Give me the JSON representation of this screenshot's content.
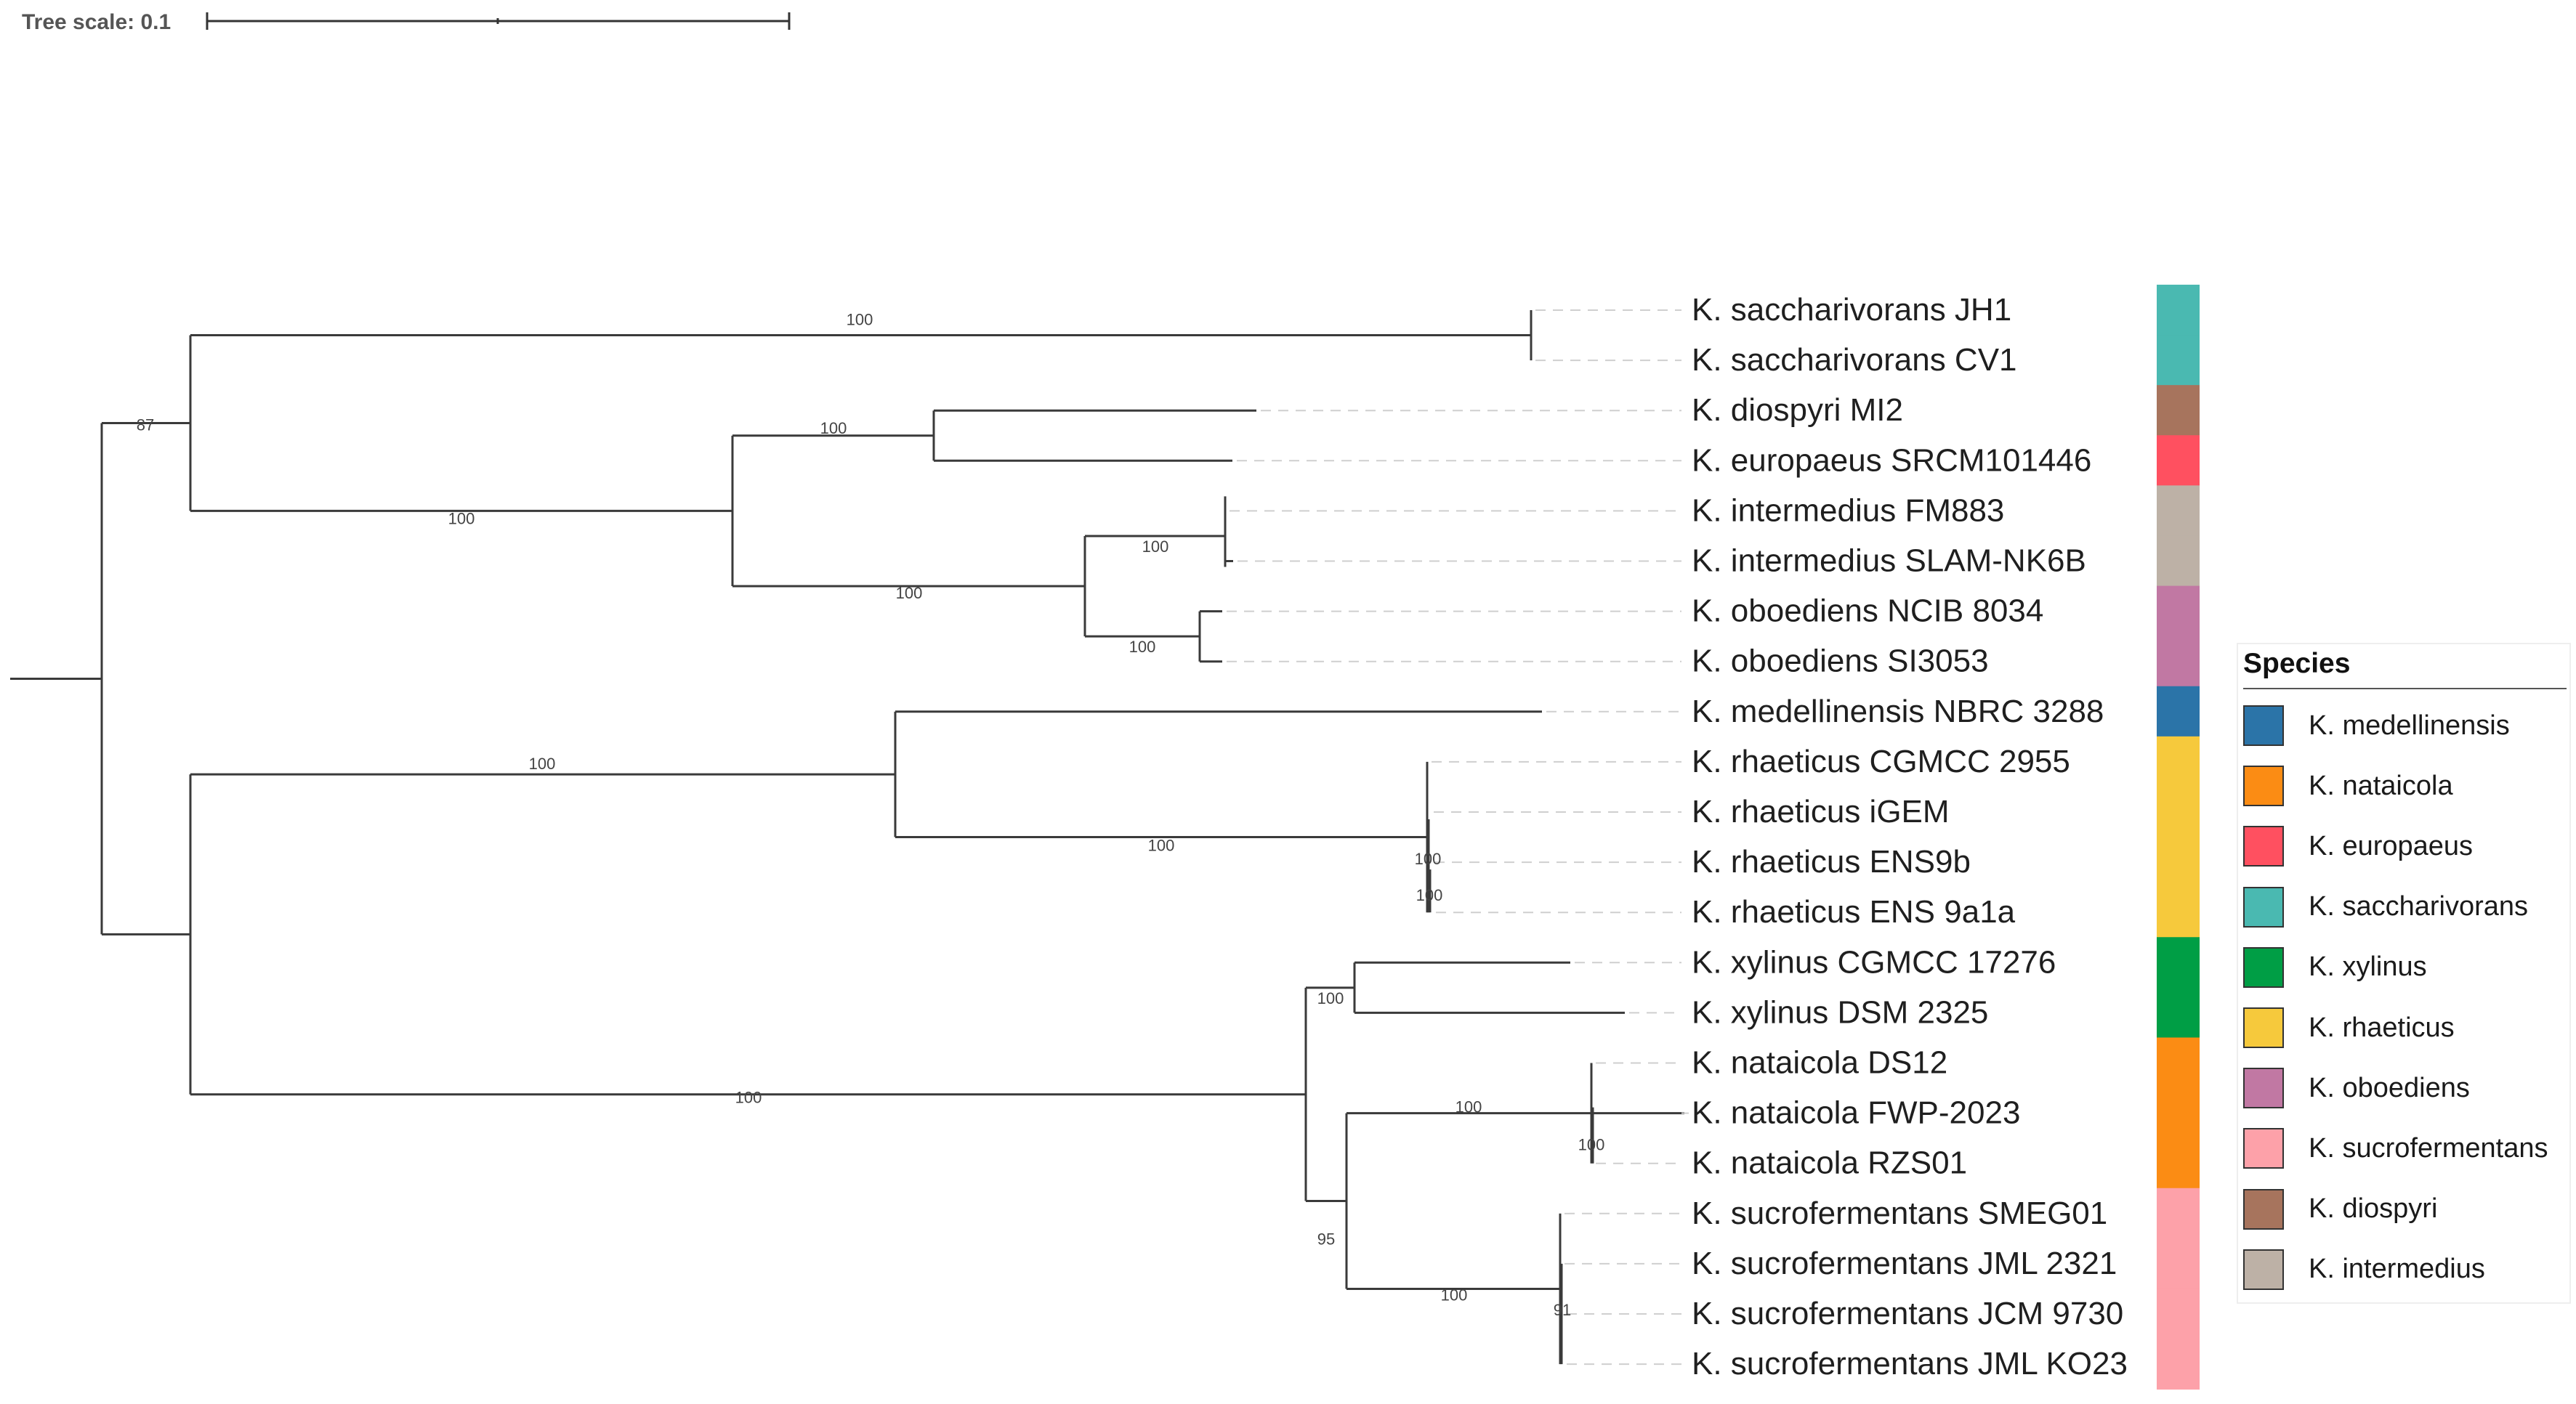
{
  "tree_scale": {
    "label": "Tree scale: 0.1"
  },
  "species_colors": {
    "medellinensis": "#2b74a8",
    "nataicola": "#fb8c14",
    "europaeus": "#ff5060",
    "saccharivorans": "#4ab9b1",
    "xylinus": "#009e45",
    "rhaeticus": "#f6c93c",
    "oboediens": "#c178a3",
    "sucrofermentans": "#fda1a9",
    "diospyri": "#a7745d",
    "intermedius": "#bdb1a6"
  },
  "leaves": [
    {
      "name": "K. saccharivorans JH1",
      "species": "saccharivorans"
    },
    {
      "name": "K. saccharivorans CV1",
      "species": "saccharivorans"
    },
    {
      "name": "K. diospyri MI2",
      "species": "diospyri"
    },
    {
      "name": "K. europaeus SRCM101446",
      "species": "europaeus"
    },
    {
      "name": "K. intermedius FM883",
      "species": "intermedius"
    },
    {
      "name": "K. intermedius SLAM-NK6B",
      "species": "intermedius"
    },
    {
      "name": "K. oboediens NCIB 8034",
      "species": "oboediens"
    },
    {
      "name": "K. oboediens SI3053",
      "species": "oboediens"
    },
    {
      "name": "K. medellinensis NBRC 3288",
      "species": "medellinensis"
    },
    {
      "name": "K. rhaeticus CGMCC 2955",
      "species": "rhaeticus"
    },
    {
      "name": "K. rhaeticus iGEM",
      "species": "rhaeticus"
    },
    {
      "name": "K. rhaeticus ENS9b",
      "species": "rhaeticus"
    },
    {
      "name": "K. rhaeticus ENS 9a1a",
      "species": "rhaeticus"
    },
    {
      "name": "K. xylinus CGMCC 17276",
      "species": "xylinus"
    },
    {
      "name": "K. xylinus DSM 2325",
      "species": "xylinus"
    },
    {
      "name": "K. nataicola DS12",
      "species": "nataicola"
    },
    {
      "name": "K. nataicola FWP-2023",
      "species": "nataicola"
    },
    {
      "name": "K. nataicola RZS01",
      "species": "nataicola"
    },
    {
      "name": "K. sucrofermentans SMEG01",
      "species": "sucrofermentans"
    },
    {
      "name": "K. sucrofermentans JML 2321",
      "species": "sucrofermentans"
    },
    {
      "name": "K. sucrofermentans JCM 9730",
      "species": "sucrofermentans"
    },
    {
      "name": "K. sucrofermentans JML KO23",
      "species": "sucrofermentans"
    }
  ],
  "bootstrap_values": {
    "sacch_clade": "100",
    "upper_clade": "87",
    "diospyri_europaeus": "100",
    "diospyri_interoboe": "100",
    "intermedius": "100",
    "intermedius_oboediens": "100",
    "oboediens": "100",
    "lower_medrhae": "100",
    "rhaeticus_clade": "100",
    "rhaeticus_inner1": "100",
    "rhaeticus_inner2": "100",
    "xylinus": "100",
    "lower_xylnatsuc": "100",
    "xylinus_natsuc": "95",
    "nataicola_clade": "100",
    "nataicola_inner": "100",
    "sucrofermentans_clade": "100",
    "sucrofermentans_inner": "91"
  },
  "legend": {
    "title": "Species",
    "items": [
      {
        "label": "K. medellinensis",
        "species": "medellinensis"
      },
      {
        "label": "K. nataicola",
        "species": "nataicola"
      },
      {
        "label": "K. europaeus",
        "species": "europaeus"
      },
      {
        "label": "K. saccharivorans",
        "species": "saccharivorans"
      },
      {
        "label": "K. xylinus",
        "species": "xylinus"
      },
      {
        "label": "K. rhaeticus",
        "species": "rhaeticus"
      },
      {
        "label": "K. oboediens",
        "species": "oboediens"
      },
      {
        "label": "K. sucrofermentans",
        "species": "sucrofermentans"
      },
      {
        "label": "K. diospyri",
        "species": "diospyri"
      },
      {
        "label": "K. intermedius",
        "species": "intermedius"
      }
    ]
  }
}
